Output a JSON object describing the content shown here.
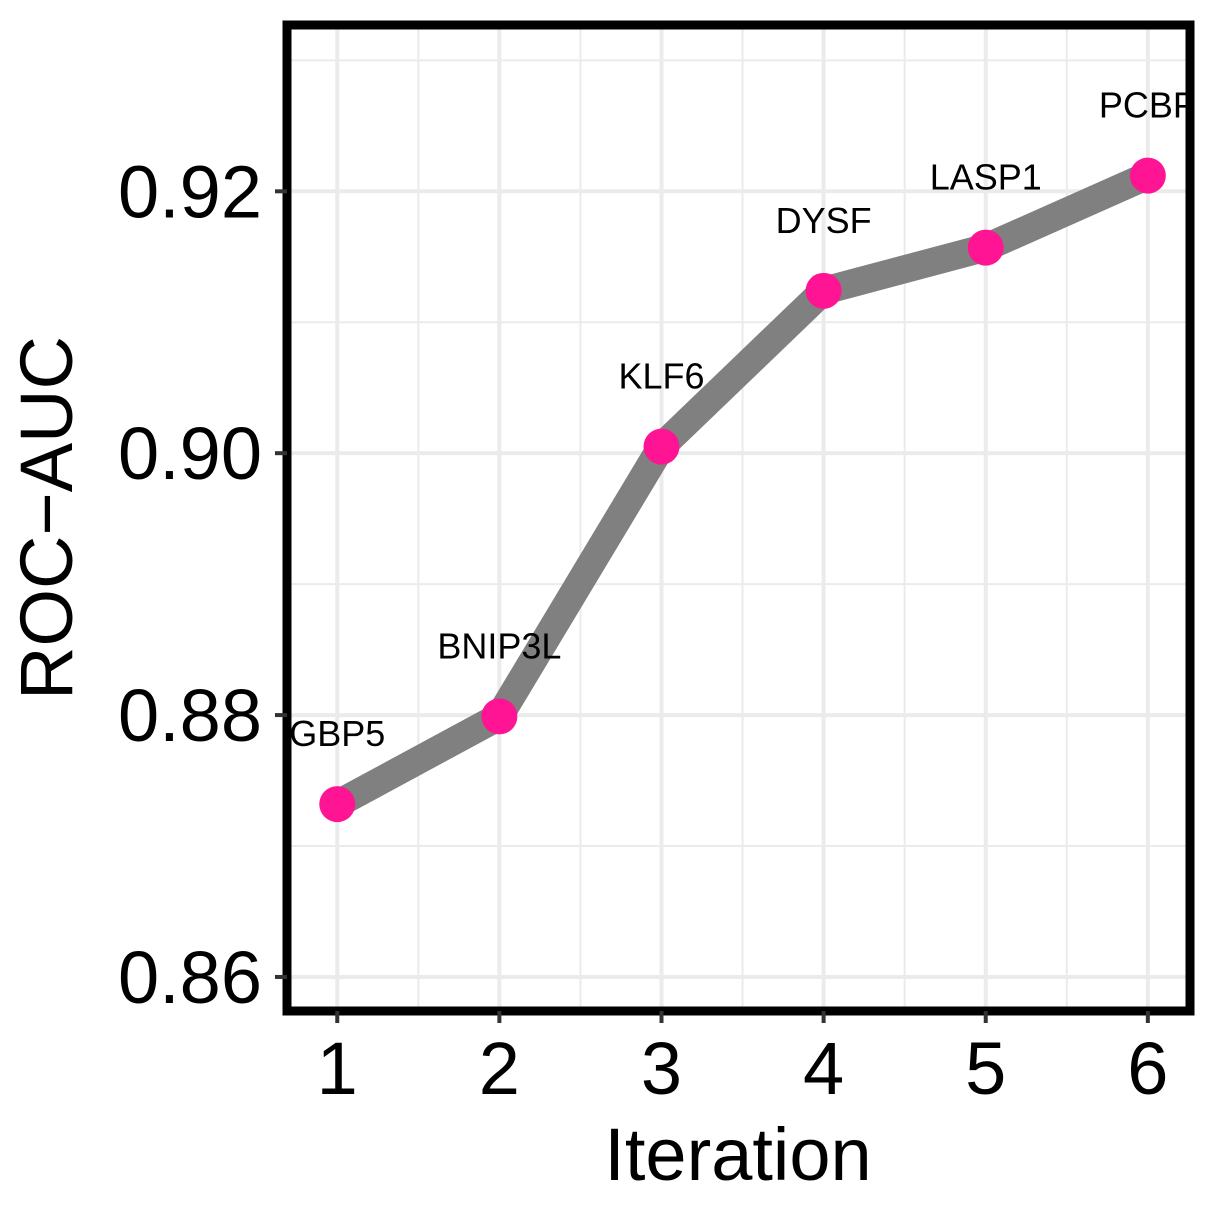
{
  "chart_data": {
    "type": "line",
    "title": "",
    "xlabel": "Iteration",
    "ylabel": "ROC−AUC",
    "x": [
      1,
      2,
      3,
      4,
      5,
      6
    ],
    "x_tick_labels": [
      "1",
      "2",
      "3",
      "4",
      "5",
      "6"
    ],
    "y_tick_values": [
      0.86,
      0.88,
      0.9,
      0.92
    ],
    "y_tick_labels": [
      "0.86",
      "0.88",
      "0.90",
      "0.92"
    ],
    "xlim": [
      0.69,
      6.26
    ],
    "ylim": [
      0.8574,
      0.9327
    ],
    "grid": true,
    "legend": "none",
    "series": [
      {
        "values": [
          0.8732,
          0.8799,
          0.9005,
          0.9124,
          0.9157,
          0.9212
        ],
        "point_labels": [
          "GBP5",
          "BNIP3L",
          "KLF6",
          "DYSF",
          "LASP1",
          "PCBP"
        ]
      }
    ],
    "colors": {
      "line": "#808080",
      "points": "#ff1493",
      "grid": "#ebebeb",
      "border": "#000000"
    }
  }
}
